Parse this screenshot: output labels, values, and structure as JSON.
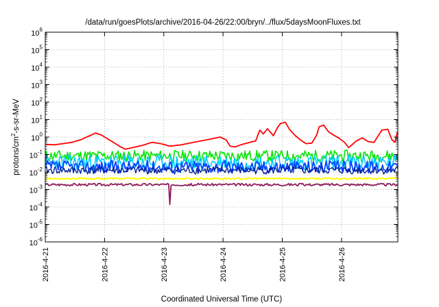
{
  "chart_data": {
    "type": "line",
    "title": "/data/run/goesPlots/archive/2016-04-26/22:00/bryn/../flux/5daysMoonFluxes.txt",
    "xlabel": "Coordinated Universal Time (UTC)",
    "ylabel": {
      "pre": "protons/cm",
      "sup": "2",
      "post": "-s-sr-MeV"
    },
    "y_scale": "log",
    "ylim_exponents": [
      -6,
      6
    ],
    "y_tick_exponents": [
      6,
      5,
      4,
      3,
      2,
      1,
      0,
      -1,
      -2,
      -3,
      -4,
      -5,
      -6
    ],
    "y_tick_base": "10",
    "x_ticks": [
      "2016-4-21",
      "2016-4-22",
      "2016-4-23",
      "2016-4-24",
      "2016-4-25",
      "2016-4-26"
    ],
    "xlim_days": [
      0,
      5.95
    ],
    "grid": true,
    "series": [
      {
        "color": "#ff0000",
        "width": 1.8,
        "points": [
          [
            0,
            0.38
          ],
          [
            0.15,
            0.36
          ],
          [
            0.3,
            0.42
          ],
          [
            0.45,
            0.5
          ],
          [
            0.6,
            0.7
          ],
          [
            0.75,
            1.2
          ],
          [
            0.85,
            1.7
          ],
          [
            0.95,
            1.3
          ],
          [
            1.05,
            0.8
          ],
          [
            1.15,
            0.5
          ],
          [
            1.25,
            0.3
          ],
          [
            1.35,
            0.2
          ],
          [
            1.5,
            0.26
          ],
          [
            1.65,
            0.34
          ],
          [
            1.8,
            0.5
          ],
          [
            1.95,
            0.42
          ],
          [
            2.1,
            0.3
          ],
          [
            2.3,
            0.36
          ],
          [
            2.5,
            0.5
          ],
          [
            2.65,
            0.62
          ],
          [
            2.8,
            0.78
          ],
          [
            2.95,
            1.0
          ],
          [
            3.05,
            0.7
          ],
          [
            3.12,
            0.3
          ],
          [
            3.2,
            0.27
          ],
          [
            3.3,
            0.36
          ],
          [
            3.45,
            0.5
          ],
          [
            3.55,
            0.6
          ],
          [
            3.62,
            2.5
          ],
          [
            3.68,
            1.5
          ],
          [
            3.75,
            3.0
          ],
          [
            3.85,
            1.2
          ],
          [
            3.92,
            3.5
          ],
          [
            3.97,
            6.0
          ],
          [
            4.05,
            7.0
          ],
          [
            4.12,
            2.8
          ],
          [
            4.2,
            1.4
          ],
          [
            4.3,
            0.7
          ],
          [
            4.4,
            0.42
          ],
          [
            4.5,
            0.45
          ],
          [
            4.58,
            1.3
          ],
          [
            4.62,
            3.8
          ],
          [
            4.7,
            4.8
          ],
          [
            4.78,
            2.0
          ],
          [
            4.85,
            1.4
          ],
          [
            4.95,
            0.9
          ],
          [
            5.05,
            0.5
          ],
          [
            5.12,
            0.25
          ],
          [
            5.25,
            0.6
          ],
          [
            5.35,
            0.9
          ],
          [
            5.45,
            0.55
          ],
          [
            5.55,
            0.5
          ],
          [
            5.62,
            1.2
          ],
          [
            5.68,
            2.5
          ],
          [
            5.78,
            2.8
          ],
          [
            5.85,
            0.7
          ],
          [
            5.9,
            0.5
          ],
          [
            5.94,
            1.8
          ]
        ]
      },
      {
        "color": "#00e400",
        "width": 1.6,
        "center": 0.085,
        "amp": 0.32,
        "seed": 11
      },
      {
        "color": "#00ccff",
        "width": 1.6,
        "center": 0.035,
        "amp": 0.45,
        "seed": 23
      },
      {
        "color": "#0044ff",
        "width": 1.8,
        "center": 0.02,
        "amp": 0.36,
        "seed": 37
      },
      {
        "color": "#001f99",
        "width": 1.4,
        "center": 0.0125,
        "amp": 0.22,
        "seed": 41
      },
      {
        "color": "#ffff00",
        "width": 2.0,
        "center": 0.0042,
        "amp": 0.05,
        "seed": 53
      },
      {
        "color": "#8b1a5a",
        "width": 1.8,
        "center": 0.0019,
        "amp": 0.07,
        "seed": 67,
        "spike": {
          "x": 2.1,
          "y": 0.00014
        }
      }
    ]
  }
}
